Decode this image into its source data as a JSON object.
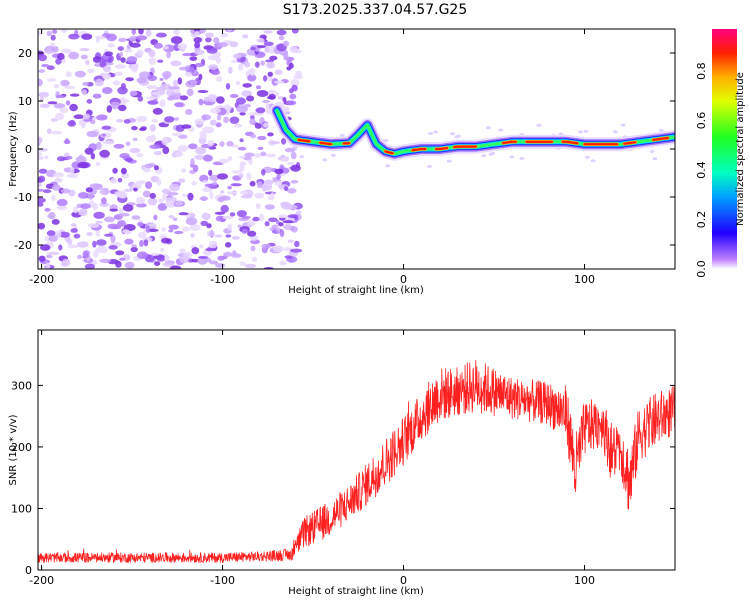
{
  "page": {
    "title": "S173.2025.337.04.57.G25"
  },
  "colors": {
    "snr_line": "#ff2020",
    "axis": "#000000",
    "background": "#ffffff"
  },
  "chart_data": [
    {
      "type": "heatmap",
      "name": "spectrogram",
      "xlabel": "Height of straight line (km)",
      "ylabel": "Frequency (Hz)",
      "xlim": [
        -202,
        150
      ],
      "ylim": [
        -25,
        25
      ],
      "xticks": [
        -200,
        -100,
        0,
        100
      ],
      "xtick_labels": [
        "-200",
        "-100",
        "0",
        "100"
      ],
      "yticks": [
        -20,
        -10,
        0,
        10,
        20
      ],
      "ytick_labels": [
        "-20",
        "-10",
        "0",
        "10",
        "20"
      ],
      "noise_region_x": [
        -202,
        -62
      ],
      "ridge": {
        "description_points_x": [
          -70,
          -65,
          -60,
          -50,
          -40,
          -30,
          -25,
          -20,
          -15,
          -10,
          -5,
          0,
          10,
          20,
          30,
          40,
          50,
          60,
          70,
          80,
          90,
          100,
          110,
          120,
          130,
          140,
          150
        ],
        "frequency_hz": [
          8,
          4,
          2,
          1.5,
          1,
          1.2,
          3,
          5,
          1,
          -0.5,
          -1,
          -0.5,
          0,
          0,
          0.5,
          0.5,
          1,
          1.5,
          1.5,
          1.5,
          1.5,
          1,
          1,
          1,
          1.5,
          2,
          2.5
        ]
      },
      "colorbar": {
        "label": "Normalized spectral amplitude",
        "ticks": [
          0.0,
          0.2,
          0.4,
          0.6,
          0.8
        ],
        "tick_labels": [
          "0.0",
          "0.2",
          "0.4",
          "0.6",
          "0.8"
        ],
        "range": [
          0,
          0.97
        ]
      }
    },
    {
      "type": "line",
      "name": "snr",
      "xlabel": "Height of straight line (km)",
      "ylabel": "SNR (10 * v/v)",
      "xlim": [
        -202,
        150
      ],
      "ylim": [
        0,
        390
      ],
      "xticks": [
        -200,
        -100,
        0,
        100
      ],
      "xtick_labels": [
        "-200",
        "-100",
        "0",
        "100"
      ],
      "yticks": [
        0,
        100,
        200,
        300
      ],
      "ytick_labels": [
        "0",
        "100",
        "200",
        "300"
      ],
      "envelope": {
        "x": [
          -202,
          -150,
          -100,
          -80,
          -62,
          -55,
          -40,
          -30,
          -20,
          -10,
          0,
          10,
          20,
          30,
          40,
          50,
          60,
          70,
          80,
          90,
          95,
          100,
          110,
          115,
          120,
          125,
          130,
          140,
          150
        ],
        "mean": [
          20,
          20,
          20,
          22,
          25,
          60,
          85,
          110,
          140,
          175,
          210,
          250,
          285,
          290,
          300,
          290,
          280,
          275,
          270,
          255,
          160,
          230,
          240,
          190,
          200,
          140,
          220,
          245,
          260
        ],
        "noise": [
          8,
          8,
          8,
          8,
          10,
          25,
          30,
          30,
          35,
          40,
          40,
          40,
          45,
          40,
          45,
          40,
          35,
          35,
          35,
          45,
          60,
          45,
          40,
          50,
          45,
          60,
          45,
          45,
          40
        ]
      }
    }
  ]
}
